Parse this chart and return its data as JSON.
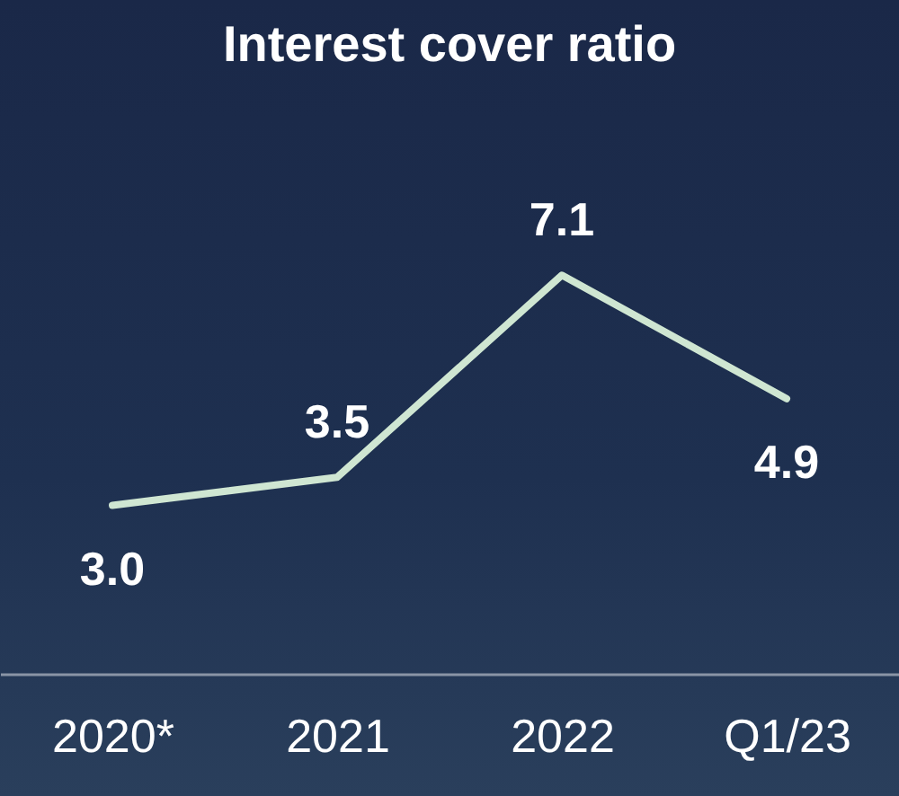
{
  "chart_data": {
    "type": "line",
    "title": "Interest cover ratio",
    "categories": [
      "2020*",
      "2021",
      "2022",
      "Q1/23"
    ],
    "series": [
      {
        "color": "#cfe6d2",
        "values": [
          3.0,
          3.5,
          7.1,
          4.9
        ],
        "value_labels": [
          "3.0",
          "3.5",
          "7.1",
          "4.9"
        ]
      }
    ],
    "tick_labels": "x",
    "grid": false,
    "marker": "none",
    "line_style": "solid"
  }
}
